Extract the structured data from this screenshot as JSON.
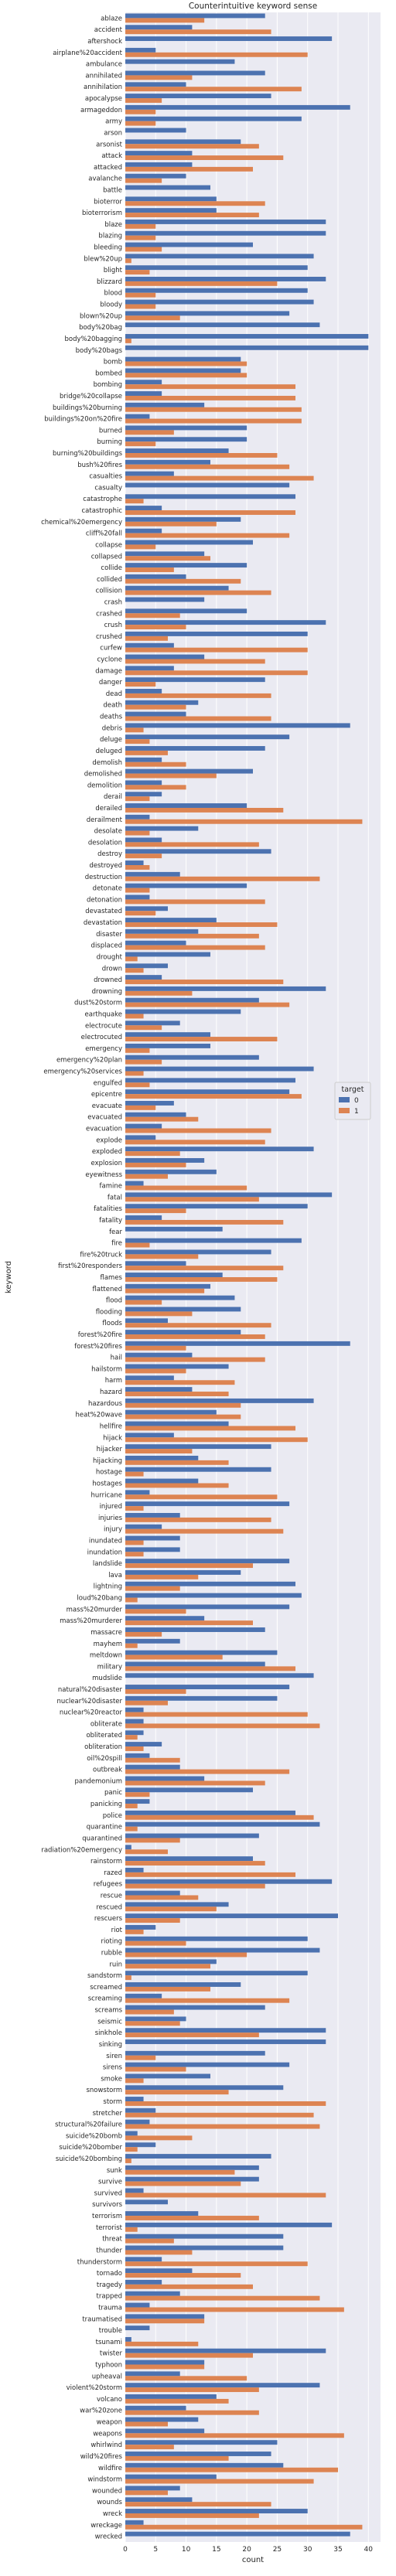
{
  "chart_data": {
    "type": "bar",
    "orientation": "horizontal",
    "title": "Counterintuitive keyword sense",
    "xlabel": "count",
    "ylabel": "keyword",
    "xlim": [
      0,
      42
    ],
    "xticks": [
      0,
      5,
      10,
      15,
      20,
      25,
      30,
      35,
      40
    ],
    "grid": true,
    "legend": {
      "title": "target",
      "placement": "right"
    },
    "colors": {
      "background": "#eaeaf2",
      "grid": "#ffffff",
      "series0": "#4c72b0",
      "series1": "#dd8452",
      "text": "#262626"
    },
    "categories": [
      "ablaze",
      "accident",
      "aftershock",
      "airplane%20accident",
      "ambulance",
      "annihilated",
      "annihilation",
      "apocalypse",
      "armageddon",
      "army",
      "arson",
      "arsonist",
      "attack",
      "attacked",
      "avalanche",
      "battle",
      "bioterror",
      "bioterrorism",
      "blaze",
      "blazing",
      "bleeding",
      "blew%20up",
      "blight",
      "blizzard",
      "blood",
      "bloody",
      "blown%20up",
      "body%20bag",
      "body%20bagging",
      "body%20bags",
      "bomb",
      "bombed",
      "bombing",
      "bridge%20collapse",
      "buildings%20burning",
      "buildings%20on%20fire",
      "burned",
      "burning",
      "burning%20buildings",
      "bush%20fires",
      "casualties",
      "casualty",
      "catastrophe",
      "catastrophic",
      "chemical%20emergency",
      "cliff%20fall",
      "collapse",
      "collapsed",
      "collide",
      "collided",
      "collision",
      "crash",
      "crashed",
      "crush",
      "crushed",
      "curfew",
      "cyclone",
      "damage",
      "danger",
      "dead",
      "death",
      "deaths",
      "debris",
      "deluge",
      "deluged",
      "demolish",
      "demolished",
      "demolition",
      "derail",
      "derailed",
      "derailment",
      "desolate",
      "desolation",
      "destroy",
      "destroyed",
      "destruction",
      "detonate",
      "detonation",
      "devastated",
      "devastation",
      "disaster",
      "displaced",
      "drought",
      "drown",
      "drowned",
      "drowning",
      "dust%20storm",
      "earthquake",
      "electrocute",
      "electrocuted",
      "emergency",
      "emergency%20plan",
      "emergency%20services",
      "engulfed",
      "epicentre",
      "evacuate",
      "evacuated",
      "evacuation",
      "explode",
      "exploded",
      "explosion",
      "eyewitness",
      "famine",
      "fatal",
      "fatalities",
      "fatality",
      "fear",
      "fire",
      "fire%20truck",
      "first%20responders",
      "flames",
      "flattened",
      "flood",
      "flooding",
      "floods",
      "forest%20fire",
      "forest%20fires",
      "hail",
      "hailstorm",
      "harm",
      "hazard",
      "hazardous",
      "heat%20wave",
      "hellfire",
      "hijack",
      "hijacker",
      "hijacking",
      "hostage",
      "hostages",
      "hurricane",
      "injured",
      "injuries",
      "injury",
      "inundated",
      "inundation",
      "landslide",
      "lava",
      "lightning",
      "loud%20bang",
      "mass%20murder",
      "mass%20murderer",
      "massacre",
      "mayhem",
      "meltdown",
      "military",
      "mudslide",
      "natural%20disaster",
      "nuclear%20disaster",
      "nuclear%20reactor",
      "obliterate",
      "obliterated",
      "obliteration",
      "oil%20spill",
      "outbreak",
      "pandemonium",
      "panic",
      "panicking",
      "police",
      "quarantine",
      "quarantined",
      "radiation%20emergency",
      "rainstorm",
      "razed",
      "refugees",
      "rescue",
      "rescued",
      "rescuers",
      "riot",
      "rioting",
      "rubble",
      "ruin",
      "sandstorm",
      "screamed",
      "screaming",
      "screams",
      "seismic",
      "sinkhole",
      "sinking",
      "siren",
      "sirens",
      "smoke",
      "snowstorm",
      "storm",
      "stretcher",
      "structural%20failure",
      "suicide%20bomb",
      "suicide%20bomber",
      "suicide%20bombing",
      "sunk",
      "survive",
      "survived",
      "survivors",
      "terrorism",
      "terrorist",
      "threat",
      "thunder",
      "thunderstorm",
      "tornado",
      "tragedy",
      "trapped",
      "trauma",
      "traumatised",
      "trouble",
      "tsunami",
      "twister",
      "typhoon",
      "upheaval",
      "violent%20storm",
      "volcano",
      "war%20zone",
      "weapon",
      "weapons",
      "whirlwind",
      "wild%20fires",
      "wildfire",
      "windstorm",
      "wounded",
      "wounds",
      "wreck",
      "wreckage",
      "wrecked"
    ],
    "series": [
      {
        "name": "0",
        "values": [
          23,
          11,
          34,
          5,
          18,
          23,
          10,
          24,
          37,
          29,
          10,
          19,
          11,
          11,
          10,
          14,
          15,
          15,
          33,
          33,
          21,
          31,
          30,
          33,
          30,
          31,
          27,
          32,
          40,
          40,
          19,
          19,
          6,
          6,
          13,
          4,
          20,
          20,
          17,
          14,
          8,
          27,
          28,
          6,
          19,
          6,
          21,
          13,
          20,
          10,
          17,
          13,
          20,
          33,
          30,
          8,
          13,
          8,
          23,
          6,
          12,
          10,
          37,
          27,
          23,
          6,
          21,
          6,
          6,
          20,
          4,
          12,
          6,
          24,
          3,
          9,
          20,
          4,
          7,
          15,
          12,
          10,
          14,
          7,
          6,
          33,
          22,
          19,
          9,
          14,
          14,
          22,
          31,
          28,
          27,
          8,
          10,
          6,
          5,
          31,
          13,
          15,
          3,
          34,
          30,
          6,
          16,
          29,
          24,
          10,
          16,
          14,
          18,
          19,
          7,
          19,
          37,
          11,
          17,
          8,
          11,
          31,
          15,
          17,
          8,
          24,
          12,
          24,
          12,
          4,
          27,
          9,
          6,
          9,
          9,
          27,
          19,
          28,
          29,
          27,
          13,
          23,
          9,
          25,
          23,
          31,
          27,
          25,
          3,
          3,
          3,
          6,
          4,
          9,
          13,
          21,
          4,
          28,
          32,
          22,
          1,
          21,
          3,
          34,
          9,
          17,
          35,
          5,
          30,
          32,
          15,
          30,
          19,
          6,
          23,
          10,
          33,
          33,
          23,
          27,
          14,
          26,
          3,
          5,
          4,
          2,
          5,
          24,
          22,
          22,
          3,
          7,
          12,
          34,
          26,
          26,
          6,
          11,
          6,
          9,
          4,
          13,
          4,
          1,
          33,
          13,
          9,
          32,
          15,
          10,
          12,
          13,
          25,
          24,
          26,
          15,
          9,
          11,
          30,
          3,
          37
        ]
      },
      {
        "name": "1",
        "values": [
          13,
          24,
          0,
          30,
          0,
          11,
          29,
          6,
          5,
          5,
          0,
          22,
          26,
          21,
          6,
          0,
          23,
          22,
          5,
          5,
          6,
          1,
          4,
          25,
          5,
          5,
          9,
          0,
          1,
          0,
          20,
          20,
          28,
          28,
          29,
          29,
          8,
          5,
          25,
          27,
          31,
          0,
          3,
          28,
          15,
          27,
          5,
          14,
          8,
          19,
          24,
          0,
          9,
          10,
          7,
          30,
          23,
          30,
          5,
          24,
          10,
          24,
          3,
          4,
          7,
          10,
          15,
          10,
          4,
          26,
          39,
          4,
          22,
          6,
          4,
          32,
          4,
          23,
          5,
          25,
          22,
          23,
          2,
          3,
          26,
          11,
          27,
          3,
          6,
          25,
          4,
          6,
          3,
          4,
          29,
          5,
          12,
          24,
          23,
          9,
          10,
          7,
          20,
          22,
          10,
          26,
          0,
          4,
          12,
          26,
          25,
          13,
          6,
          11,
          24,
          23,
          10,
          23,
          10,
          18,
          17,
          19,
          19,
          28,
          30,
          11,
          17,
          3,
          17,
          25,
          3,
          24,
          26,
          3,
          3,
          21,
          12,
          9,
          2,
          10,
          21,
          6,
          2,
          16,
          28,
          0,
          10,
          7,
          30,
          32,
          2,
          3,
          9,
          27,
          23,
          4,
          2,
          31,
          2,
          9,
          7,
          23,
          28,
          23,
          12,
          15,
          9,
          3,
          10,
          20,
          14,
          1,
          14,
          27,
          8,
          9,
          22,
          0,
          5,
          10,
          3,
          17,
          33,
          31,
          32,
          11,
          2,
          1,
          18,
          19,
          33,
          0,
          22,
          2,
          8,
          11,
          30,
          19,
          21,
          32,
          36,
          13,
          0,
          12,
          21,
          13,
          20,
          22,
          17,
          22,
          7,
          36,
          8,
          17,
          35,
          31,
          7,
          24,
          22,
          39,
          0
        ]
      }
    ]
  }
}
